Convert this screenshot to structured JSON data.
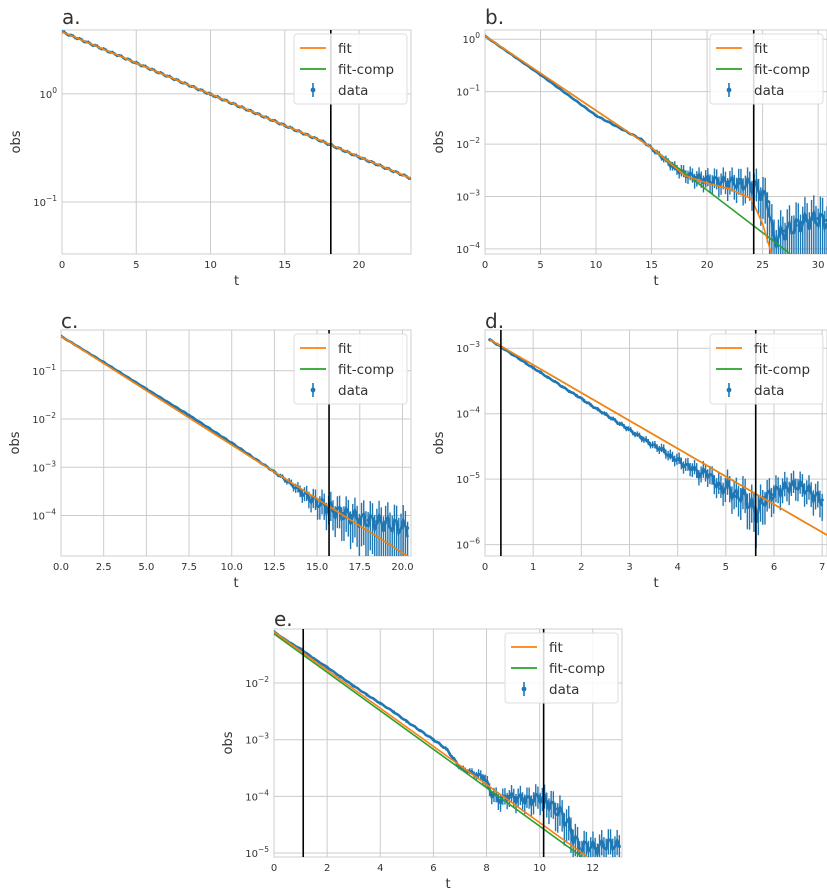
{
  "figure": {
    "colors": {
      "data": "#1f77b4",
      "fit": "#ff7f0e",
      "fit_comp": "#2ca02c",
      "vline": "#000000",
      "grid": "#cccccc",
      "spine": "#cfcfcf",
      "text": "#333333"
    }
  },
  "chart_data": [
    {
      "panel": "a.",
      "type": "line",
      "xlabel": "t",
      "ylabel": "obs",
      "yscale": "log",
      "xlim": [
        0,
        23.5
      ],
      "ylim": [
        0.033,
        3.9
      ],
      "xticks": [
        0,
        5,
        10,
        15,
        20
      ],
      "yticks": [
        {
          "value": 0.1,
          "label": "10^-1"
        },
        {
          "value": 1,
          "label": "10^0"
        }
      ],
      "grid": true,
      "legend": {
        "placement": "top-right",
        "entries": [
          "fit",
          "fit-comp",
          "data"
        ]
      },
      "vlines": [
        18.1
      ],
      "series": [
        {
          "name": "fit",
          "kind": "line",
          "x": [
            0,
            23.5
          ],
          "y": [
            3.75,
            0.165
          ]
        },
        {
          "name": "fit-comp",
          "kind": "line",
          "x": [
            0,
            23.5
          ],
          "y": [
            3.75,
            0.165
          ]
        },
        {
          "name": "data",
          "kind": "errorbar",
          "x": [
            0,
            5,
            10,
            15,
            20,
            23.5
          ],
          "y": [
            3.75,
            1.93,
            0.99,
            0.51,
            0.26,
            0.165
          ],
          "yerr_rel": [
            0.03,
            0.03,
            0.03,
            0.03,
            0.03,
            0.03
          ]
        }
      ]
    },
    {
      "panel": "b.",
      "type": "line",
      "xlabel": "t",
      "ylabel": "obs",
      "yscale": "log",
      "xlim": [
        0,
        30.8
      ],
      "ylim": [
        8e-05,
        1.5
      ],
      "xticks": [
        0,
        5,
        10,
        15,
        20,
        25,
        30
      ],
      "yticks": [
        {
          "value": 0.0001,
          "label": "10^-4"
        },
        {
          "value": 0.001,
          "label": "10^-3"
        },
        {
          "value": 0.01,
          "label": "10^-2"
        },
        {
          "value": 0.1,
          "label": "10^-1"
        },
        {
          "value": 1,
          "label": "10^0"
        }
      ],
      "grid": true,
      "legend": {
        "placement": "top-right",
        "entries": [
          "fit",
          "fit-comp",
          "data"
        ]
      },
      "vlines": [
        24.2
      ],
      "series": [
        {
          "name": "fit",
          "kind": "line",
          "x": [
            0,
            15,
            18,
            20,
            22,
            24,
            25,
            25.8
          ],
          "y": [
            1.15,
            0.0085,
            0.0025,
            0.0018,
            0.0014,
            0.0009,
            0.0003,
            8e-05
          ]
        },
        {
          "name": "fit-comp",
          "kind": "line",
          "x": [
            0,
            15,
            27.5
          ],
          "y": [
            1.15,
            0.0085,
            8e-05
          ]
        },
        {
          "name": "data",
          "kind": "errorbar",
          "x": [
            0,
            5,
            10,
            14,
            16,
            17,
            18,
            19,
            20,
            21,
            22,
            23,
            24,
            24.5,
            25,
            25.5,
            26,
            26.5,
            27,
            27.5,
            28,
            28.5,
            29,
            29.5,
            30,
            30.8
          ],
          "y": [
            1.15,
            0.21,
            0.035,
            0.0125,
            0.0055,
            0.0036,
            0.0027,
            0.0023,
            0.0021,
            0.002,
            0.0019,
            0.0018,
            0.0017,
            0.0015,
            0.0011,
            0.0008,
            0.00015,
            0.00018,
            0.00022,
            0.00025,
            0.00028,
            0.00032,
            0.00035,
            0.00037,
            0.00038,
            0.00035
          ],
          "yerr_rel": [
            0.02,
            0.02,
            0.03,
            0.05,
            0.12,
            0.18,
            0.25,
            0.3,
            0.35,
            0.4,
            0.45,
            0.5,
            0.55,
            0.6,
            0.7,
            0.8,
            0.95,
            0.95,
            0.95,
            0.95,
            0.95,
            0.95,
            0.95,
            0.95,
            0.95,
            0.95
          ]
        }
      ]
    },
    {
      "panel": "c.",
      "type": "line",
      "xlabel": "t",
      "ylabel": "obs",
      "yscale": "log",
      "xlim": [
        0,
        20.5
      ],
      "ylim": [
        1.45e-05,
        0.7
      ],
      "xticks": [
        0.0,
        2.5,
        5.0,
        7.5,
        10.0,
        12.5,
        15.0,
        17.5,
        20.0
      ],
      "yticks": [
        {
          "value": 0.0001,
          "label": "10^-4"
        },
        {
          "value": 0.001,
          "label": "10^-3"
        },
        {
          "value": 0.01,
          "label": "10^-2"
        },
        {
          "value": 0.1,
          "label": "10^-1"
        }
      ],
      "grid": true,
      "legend": {
        "placement": "top-right",
        "entries": [
          "fit",
          "fit-comp",
          "data"
        ]
      },
      "vlines": [
        15.7
      ],
      "series": [
        {
          "name": "fit",
          "kind": "line",
          "x": [
            0,
            12.5,
            20.3
          ],
          "y": [
            0.52,
            0.0008,
            1.45e-05
          ]
        },
        {
          "name": "fit-comp",
          "kind": "line",
          "x": [
            0,
            12.5,
            20.3
          ],
          "y": [
            0.52,
            0.0008,
            1.45e-05
          ]
        },
        {
          "name": "data",
          "kind": "errorbar",
          "x": [
            0,
            2.5,
            5,
            7.5,
            10,
            12.5,
            13.5,
            14,
            14.5,
            15,
            15.5,
            16,
            16.5,
            17,
            17.5,
            18,
            18.5,
            19,
            19.5,
            20,
            20.3
          ],
          "y": [
            0.52,
            0.15,
            0.042,
            0.012,
            0.0032,
            0.0008,
            0.00045,
            0.00032,
            0.00024,
            0.00019,
            0.00016,
            0.00013,
            0.00011,
            0.0001,
            8.5e-05,
            8e-05,
            7.5e-05,
            7e-05,
            6.5e-05,
            6e-05,
            5.5e-05
          ],
          "yerr_rel": [
            0.02,
            0.02,
            0.02,
            0.03,
            0.04,
            0.06,
            0.15,
            0.25,
            0.35,
            0.45,
            0.55,
            0.6,
            0.65,
            0.7,
            0.75,
            0.8,
            0.85,
            0.9,
            0.9,
            0.9,
            0.9
          ]
        }
      ]
    },
    {
      "panel": "d.",
      "type": "line",
      "xlabel": "t",
      "ylabel": "obs",
      "yscale": "log",
      "xlim": [
        0,
        7.1
      ],
      "ylim": [
        6.7e-07,
        0.0019
      ],
      "xticks": [
        0,
        1,
        2,
        3,
        4,
        5,
        6,
        7
      ],
      "yticks": [
        {
          "value": 1e-06,
          "label": "10^-6"
        },
        {
          "value": 1e-05,
          "label": "10^-5"
        },
        {
          "value": 0.0001,
          "label": "10^-4"
        },
        {
          "value": 0.001,
          "label": "10^-3"
        }
      ],
      "grid": true,
      "legend": {
        "placement": "top-right",
        "entries": [
          "fit",
          "fit-comp",
          "data"
        ]
      },
      "vlines": [
        0.33,
        5.62
      ],
      "series": [
        {
          "name": "fit",
          "kind": "line",
          "x": [
            0.1,
            7.1
          ],
          "y": [
            0.00135,
            1.4e-06
          ]
        },
        {
          "name": "fit-comp",
          "kind": "line",
          "x": [
            0.1,
            7.1
          ],
          "y": [
            0.00135,
            1.4e-06
          ]
        },
        {
          "name": "data",
          "kind": "errorbar",
          "x": [
            0.1,
            0.25,
            0.4,
            0.55,
            0.7,
            0.85,
            1.0,
            1.15,
            1.3,
            1.45,
            1.6,
            1.75,
            1.9,
            2.05,
            2.2,
            2.35,
            2.5,
            2.65,
            2.8,
            2.95,
            3.1,
            3.25,
            3.4,
            3.55,
            3.7,
            3.85,
            4.0,
            4.15,
            4.3,
            4.45,
            4.6,
            4.75,
            4.9,
            5.05,
            5.2,
            5.35,
            5.5,
            5.65,
            5.8,
            5.95,
            6.1,
            6.25,
            6.4,
            6.55,
            6.7,
            6.85,
            7.0
          ],
          "y": [
            0.00135,
            0.00115,
            0.00097,
            0.00082,
            0.0007,
            0.00059,
            0.0005,
            0.00043,
            0.00036,
            0.00031,
            0.00026,
            0.00022,
            0.00019,
            0.00016,
            0.000135,
            0.000115,
            9.8e-05,
            8.3e-05,
            7e-05,
            6e-05,
            5e-05,
            4.3e-05,
            3.6e-05,
            3.1e-05,
            2.8e-05,
            2.2e-05,
            2e-05,
            1.6e-05,
            1.5e-05,
            1.2e-05,
            1.3e-05,
            9.5e-06,
            7.2e-06,
            8e-06,
            5.5e-06,
            6e-06,
            4.2e-06,
            3e-06,
            5.2e-06,
            5.8e-06,
            6.8e-06,
            7.5e-06,
            8.2e-06,
            8e-06,
            6.8e-06,
            5.5e-06,
            4.8e-06
          ],
          "yerr_rel": [
            0.03,
            0.03,
            0.03,
            0.03,
            0.03,
            0.03,
            0.03,
            0.03,
            0.03,
            0.03,
            0.04,
            0.04,
            0.04,
            0.05,
            0.05,
            0.05,
            0.06,
            0.06,
            0.07,
            0.08,
            0.08,
            0.1,
            0.1,
            0.12,
            0.14,
            0.16,
            0.18,
            0.2,
            0.22,
            0.25,
            0.28,
            0.3,
            0.35,
            0.4,
            0.45,
            0.5,
            0.55,
            0.6,
            0.5,
            0.45,
            0.4,
            0.38,
            0.35,
            0.35,
            0.38,
            0.4,
            0.42
          ]
        }
      ]
    },
    {
      "panel": "e.",
      "type": "line",
      "xlabel": "t",
      "ylabel": "obs",
      "yscale": "log",
      "xlim": [
        0,
        13.1
      ],
      "ylim": [
        8.5e-06,
        0.09
      ],
      "xticks": [
        0,
        2,
        4,
        6,
        8,
        10,
        12
      ],
      "yticks": [
        {
          "value": 1e-05,
          "label": "10^-5"
        },
        {
          "value": 0.0001,
          "label": "10^-4"
        },
        {
          "value": 0.001,
          "label": "10^-3"
        },
        {
          "value": 0.01,
          "label": "10^-2"
        }
      ],
      "grid": true,
      "legend": {
        "placement": "top-right",
        "entries": [
          "fit",
          "fit-comp",
          "data"
        ]
      },
      "vlines": [
        1.1,
        10.15
      ],
      "series": [
        {
          "name": "fit",
          "kind": "line",
          "x": [
            0,
            11.8
          ],
          "y": [
            0.08,
            8.5e-06
          ]
        },
        {
          "name": "fit-comp",
          "kind": "line",
          "x": [
            0,
            11.6
          ],
          "y": [
            0.074,
            8.5e-06
          ]
        },
        {
          "name": "data",
          "kind": "errorbar",
          "x": [
            0,
            0.5,
            1,
            1.5,
            2,
            2.5,
            3,
            3.5,
            4,
            4.5,
            5,
            5.5,
            6,
            6.5,
            7,
            7.3,
            7.6,
            7.9,
            8.2,
            8.5,
            8.8,
            9.1,
            9.4,
            9.7,
            10.0,
            10.3,
            10.6,
            10.9,
            11.2,
            11.5,
            11.8,
            12.1,
            12.4,
            12.7,
            13.0
          ],
          "y": [
            0.08,
            0.055,
            0.04,
            0.027,
            0.019,
            0.013,
            0.0089,
            0.0062,
            0.0044,
            0.0031,
            0.0021,
            0.00145,
            0.001,
            0.00068,
            0.00032,
            0.00028,
            0.00024,
            0.00022,
            0.00011,
            8.5e-05,
            0.0001,
            9.5e-05,
            9e-05,
            8.5e-05,
            0.0001,
            8e-05,
            6e-05,
            4.5e-05,
            2.5e-05,
            1.2e-05,
            1.4e-05,
            1.2e-05,
            1.4e-05,
            1.5e-05,
            1.3e-05
          ],
          "yerr_rel": [
            0.02,
            0.02,
            0.02,
            0.02,
            0.02,
            0.02,
            0.03,
            0.03,
            0.03,
            0.03,
            0.04,
            0.04,
            0.05,
            0.06,
            0.08,
            0.1,
            0.15,
            0.2,
            0.25,
            0.3,
            0.3,
            0.35,
            0.35,
            0.4,
            0.4,
            0.45,
            0.5,
            0.55,
            0.6,
            0.5,
            0.45,
            0.45,
            0.45,
            0.45,
            0.45
          ]
        }
      ]
    }
  ]
}
